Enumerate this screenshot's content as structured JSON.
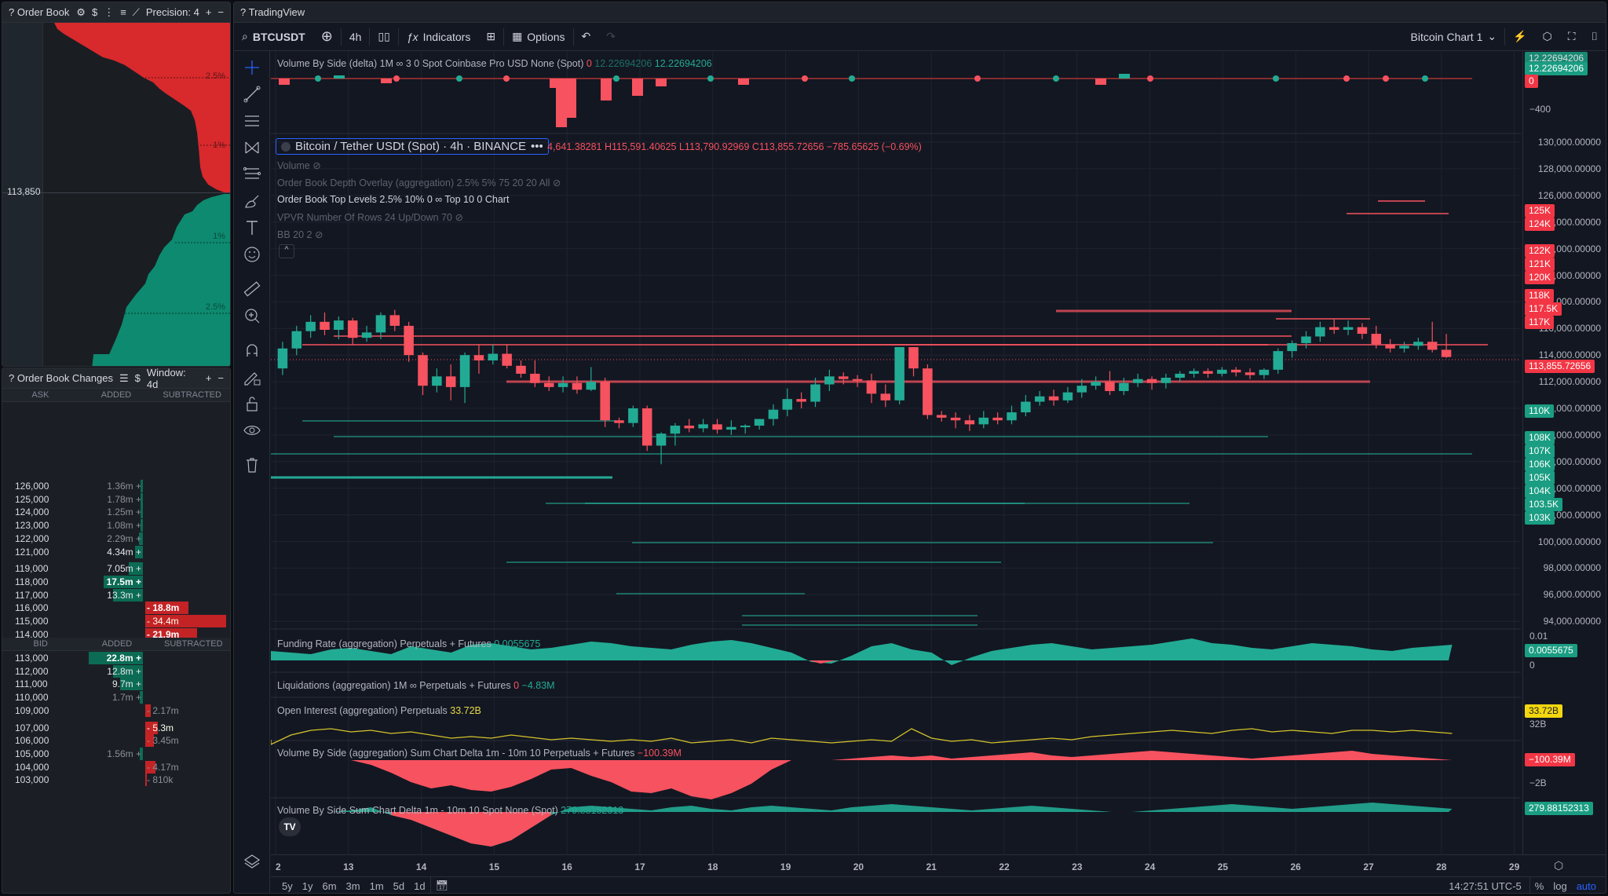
{
  "order_book": {
    "title": "? Order Book",
    "precision_label": "Precision: 4",
    "mid_price": "113,850",
    "ask_pct_labels": [
      "2.5%",
      "1%"
    ],
    "bid_pct_labels": [
      "1%",
      "2.5%"
    ],
    "colors": {
      "ask": "#d8292c",
      "bid": "#0d8a6f",
      "bg": "#1b1f25"
    }
  },
  "order_book_changes": {
    "title": "? Order Book Changes",
    "window_label": "Window: 4d",
    "ask_headers": [
      "ASK",
      "ADDED",
      "SUBTRACTED"
    ],
    "bid_headers": [
      "BID",
      "ADDED",
      "SUBTRACTED"
    ],
    "ask_rows": [
      {
        "price": "126,000",
        "added": "1.36m +",
        "added_w": 3,
        "sub": "",
        "sub_w": 0,
        "style": ""
      },
      {
        "price": "125,000",
        "added": "1.78m +",
        "added_w": 3,
        "sub": "",
        "sub_w": 0,
        "style": ""
      },
      {
        "price": "124,000",
        "added": "1.25m +",
        "added_w": 3,
        "sub": "",
        "sub_w": 0,
        "style": ""
      },
      {
        "price": "123,000",
        "added": "1.08m +",
        "added_w": 3,
        "sub": "",
        "sub_w": 0,
        "style": ""
      },
      {
        "price": "122,000",
        "added": "2.29m +",
        "added_w": 5,
        "sub": "",
        "sub_w": 0,
        "style": ""
      },
      {
        "price": "121,000",
        "added": "4.34m +",
        "added_w": 10,
        "sub": "",
        "sub_w": 0,
        "style": "w"
      },
      {
        "price": "119,000",
        "added": "7.05m +",
        "added_w": 18,
        "sub": "",
        "sub_w": 0,
        "style": "w"
      },
      {
        "price": "118,000",
        "added": "17.5m +",
        "added_w": 50,
        "sub": "",
        "sub_w": 0,
        "style": "b"
      },
      {
        "price": "117,000",
        "added": "13.3m +",
        "added_w": 38,
        "sub": "",
        "sub_w": 0,
        "style": "w"
      },
      {
        "price": "116,000",
        "added": "",
        "added_w": 0,
        "sub": "- 18.8m",
        "sub_w": 55,
        "style": "b"
      },
      {
        "price": "115,000",
        "added": "",
        "added_w": 0,
        "sub": "- 34.4m",
        "sub_w": 103,
        "style": "w"
      },
      {
        "price": "114,000",
        "added": "",
        "added_w": 0,
        "sub": "- 21.9m",
        "sub_w": 66,
        "style": "b"
      }
    ],
    "bid_rows": [
      {
        "price": "113,000",
        "added": "22.8m +",
        "added_w": 69,
        "sub": "",
        "sub_w": 0,
        "style": "b"
      },
      {
        "price": "112,000",
        "added": "12.8m +",
        "added_w": 38,
        "sub": "",
        "sub_w": 0,
        "style": "w"
      },
      {
        "price": "111,000",
        "added": "9.7m +",
        "added_w": 29,
        "sub": "",
        "sub_w": 0,
        "style": "w"
      },
      {
        "price": "110,000",
        "added": "1.7m +",
        "added_w": 4,
        "sub": "",
        "sub_w": 0,
        "style": ""
      },
      {
        "price": "109,000",
        "added": "",
        "added_w": 0,
        "sub": "- 2.17m",
        "sub_w": 7,
        "style": ""
      },
      {
        "price": "107,000",
        "added": "",
        "added_w": 0,
        "sub": "- 5.3m",
        "sub_w": 16,
        "style": "w"
      },
      {
        "price": "106,000",
        "added": "",
        "added_w": 0,
        "sub": "- 3.45m",
        "sub_w": 11,
        "style": ""
      },
      {
        "price": "105,000",
        "added": "1.56m +",
        "added_w": 4,
        "sub": "",
        "sub_w": 0,
        "style": ""
      },
      {
        "price": "104,000",
        "added": "",
        "added_w": 0,
        "sub": "- 4.17m",
        "sub_w": 13,
        "style": ""
      },
      {
        "price": "103,000",
        "added": "",
        "added_w": 0,
        "sub": "- 810k",
        "sub_w": 2,
        "style": ""
      }
    ]
  },
  "tradingview": {
    "title": "? TradingView",
    "toolbar": {
      "symbol": "BTCUSDT",
      "interval": "4h",
      "indicators_label": "Indicators",
      "options_label": "Options",
      "layout_name": "Bitcoin Chart 1"
    },
    "main_series": {
      "name": "Bitcoin / Tether USDt (Spot) · 4h · BINANCE",
      "ohlc": "4,641.38281  H115,591.40625  L113,790.92969  C113,855.72656  −785.65625 (−0.69%)",
      "last_price": "113,855.72656"
    },
    "legends": {
      "vbs_delta": {
        "label": "Volume By Side (delta) 1M ∞ 3 0 Spot Coinbase Pro USD None (Spot)",
        "v1": "0",
        "v2": "12.22694206",
        "v3": "12.22694206"
      },
      "volume": "Volume",
      "ob_depth": "Order Book Depth Overlay (aggregation) 2.5% 5% 75 20 20 All",
      "ob_top": "Order Book Top Levels 2.5% 10% 0 ∞ Top 10 0 Chart",
      "vpvr": "VPVR Number Of Rows 24 Up/Down 70",
      "bb": "BB 20 2",
      "funding": {
        "label": "Funding Rate (aggregation) Perpetuals + Futures",
        "value": "0.0055675"
      },
      "liquidations": {
        "label": "Liquidations (aggregation) 1M ∞ Perpetuals + Futures",
        "v1": "0",
        "v2": "−4.83M"
      },
      "oi": {
        "label": "Open Interest (aggregation) Perpetuals",
        "value": "33.72B"
      },
      "vbs_agg": {
        "label": "Volume By Side (aggregation) Sum Chart Delta 1m - 10m 10 Perpetuals + Futures",
        "value": "−100.39M"
      },
      "vbs_spot": {
        "label": "Volume By Side Sum Chart Delta 1m - 10m 10 Spot None (Spot)",
        "value": "279.88152313"
      }
    },
    "price_scale": {
      "top_pane": {
        "tag1": "12.22694206",
        "tag2": "12.22694206",
        "zero_tag": "0",
        "tick": "−400"
      },
      "ticks": [
        "130,000.00000",
        "128,000.00000",
        "126,000.00000",
        "124,000.00000",
        "122,000.00000",
        "120,000.00000",
        "118,000.00000",
        "116,000.00000",
        "114,000.00000",
        "112,000.00000",
        "110,000.00000",
        "108,000.00000",
        "106,000.00000",
        "104,000.00000",
        "102,000.00000",
        "100,000.00000",
        "98,000.00000",
        "96,000.00000",
        "94,000.00000"
      ],
      "ask_tags": [
        "125K",
        "124K",
        "122K",
        "121K",
        "120K",
        "118K",
        "117.5K",
        "117K"
      ],
      "bid_tags": [
        "110K",
        "108K",
        "107K",
        "106K",
        "105K",
        "104K",
        "103.5K",
        "103K"
      ],
      "funding_ticks": [
        "0.01",
        "0"
      ],
      "funding_tag": "0.0055675",
      "oi_tag": "33.72B",
      "oi_tick": "32B",
      "vbs_agg_tag": "−100.39M",
      "vbs_agg_tick": "−2B",
      "vbs_spot_tag": "279.88152313"
    },
    "time_axis": [
      "2",
      "13",
      "14",
      "15",
      "16",
      "17",
      "18",
      "19",
      "20",
      "21",
      "22",
      "23",
      "24",
      "25",
      "26",
      "27",
      "28",
      "29"
    ],
    "bottom_bar": {
      "ranges": [
        "5y",
        "1y",
        "6m",
        "3m",
        "1m",
        "5d",
        "1d"
      ],
      "clock": "14:27:51 UTC-5",
      "pct": "%",
      "log": "log",
      "auto": "auto"
    },
    "colors": {
      "up": "#22ab94",
      "down": "#f7525f",
      "bg": "#131722",
      "grid": "#1f2330",
      "accent": "#2962ff",
      "oi_line": "#d4c32a"
    }
  }
}
